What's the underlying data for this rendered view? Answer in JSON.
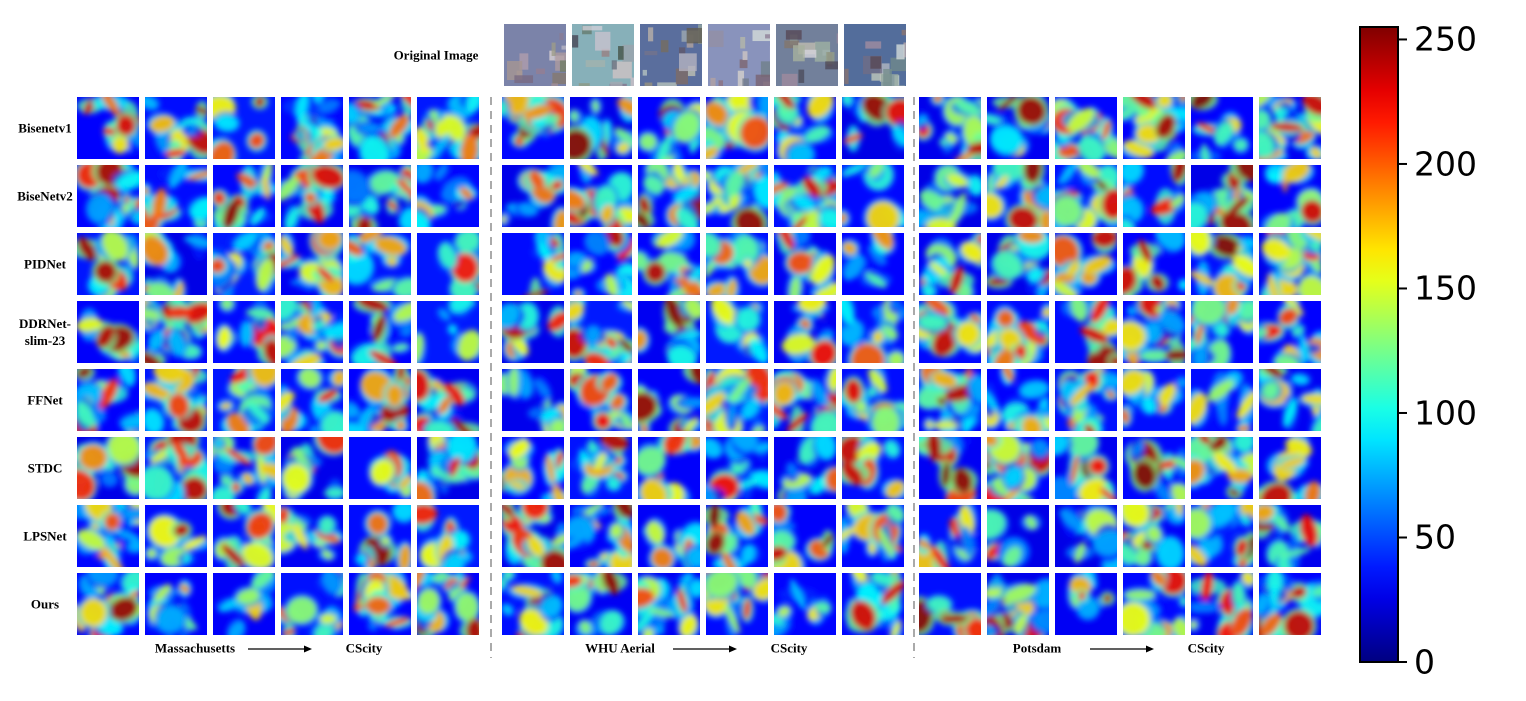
{
  "figure": {
    "original_label": "Original Image",
    "rows": [
      "Bisenetv1",
      "BiseNetv2",
      "PIDNet",
      "DDRNet-\nslim-23",
      "FFNet",
      "STDC",
      "LPSNet",
      "Ours"
    ],
    "groups": [
      {
        "source": "Massachusetts",
        "target": "CScity"
      },
      {
        "source": "WHU Aerial",
        "target": "CScity"
      },
      {
        "source": "Potsdam",
        "target": "CScity"
      }
    ],
    "colorbar": {
      "lim": [
        0,
        255
      ],
      "ticks": [
        0,
        50,
        100,
        150,
        200,
        250
      ]
    }
  }
}
